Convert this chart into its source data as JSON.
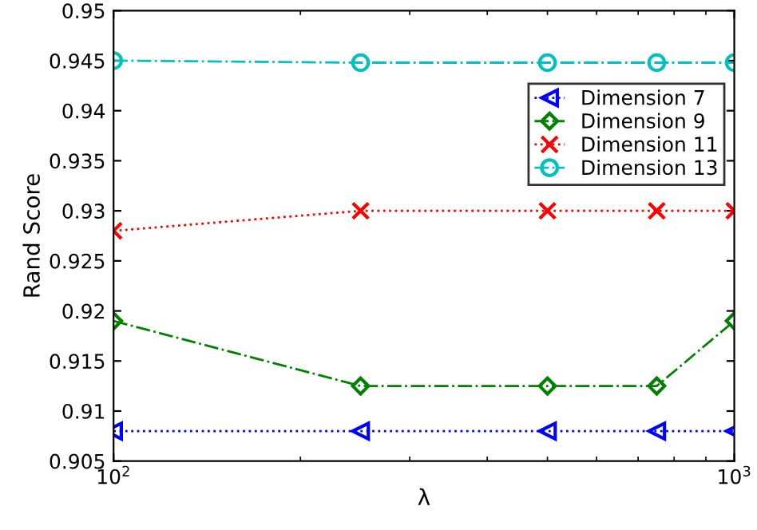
{
  "chart_data": {
    "type": "line",
    "xlabel": "λ",
    "ylabel": "Rand Score",
    "x": [
      100,
      250,
      500,
      750,
      1000
    ],
    "series": [
      {
        "name": "Dimension 7",
        "color": "#0000ff",
        "marker": "triangle",
        "line_style": "dotted",
        "values": [
          0.908,
          0.908,
          0.908,
          0.908,
          0.908
        ]
      },
      {
        "name": "Dimension 9",
        "color": "#008000",
        "marker": "diamond",
        "line_style": "dashdot",
        "values": [
          0.919,
          0.9125,
          0.9125,
          0.9125,
          0.919
        ]
      },
      {
        "name": "Dimension 11",
        "color": "#ff0000",
        "marker": "cross",
        "line_style": "dotted",
        "values": [
          0.928,
          0.93,
          0.93,
          0.93,
          0.93
        ]
      },
      {
        "name": "Dimension 13",
        "color": "#00bfbf",
        "marker": "circle",
        "line_style": "dashdot",
        "values": [
          0.945,
          0.9448,
          0.9448,
          0.9448,
          0.9448
        ]
      }
    ],
    "log": "x",
    "xlim": [
      100,
      1000
    ],
    "xticks": [
      {
        "value": 100,
        "label": "10$^{2}$"
      },
      {
        "value": 1000,
        "label": "10$^{3}$"
      }
    ],
    "ylim": [
      0.905,
      0.95
    ],
    "yticks": [
      0.905,
      0.91,
      0.915,
      0.92,
      0.925,
      0.93,
      0.935,
      0.94,
      0.945,
      0.95
    ],
    "grid": false,
    "legend": "top right"
  }
}
